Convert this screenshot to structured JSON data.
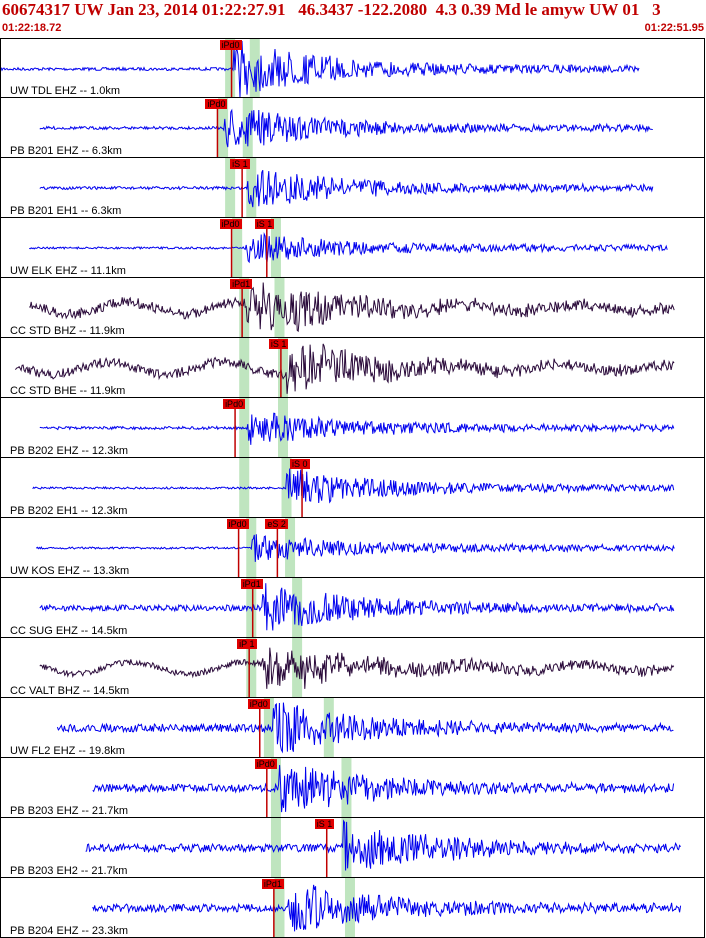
{
  "header": {
    "title": "60674317 UW Jan 23, 2014 01:22:27.91   46.3437 -122.2080  4.3 0.39 Md le amyw UW 01   3",
    "time_start": "01:22:18.72",
    "time_end": "01:22:51.95"
  },
  "colors": {
    "header": "#c00000",
    "trace_blue": "#0000ee",
    "trace_dark": "#2a0a3a",
    "pick": "#e00000",
    "band": "#bfe5bf"
  },
  "traces": [
    {
      "label": "UW TDL EHZ -- 1.0km",
      "color": "blue",
      "start": 0.0,
      "end": 0.905,
      "onset": 0.33,
      "amp": 28,
      "noise": 1.5,
      "picks": [
        {
          "text": "iPd0",
          "t": 0.31
        }
      ],
      "bands": [
        0.325,
        0.36
      ]
    },
    {
      "label": "PB B201 EHZ -- 6.3km",
      "color": "blue",
      "start": 0.055,
      "end": 0.925,
      "onset": 0.315,
      "amp": 22,
      "noise": 1.5,
      "picks": [
        {
          "text": "iPd0",
          "t": 0.29
        }
      ],
      "bands": [
        0.315,
        0.35
      ]
    },
    {
      "label": "PB B201 EH1 -- 6.3km",
      "color": "blue",
      "start": 0.055,
      "end": 0.925,
      "onset": 0.35,
      "amp": 20,
      "noise": 1.5,
      "picks": [
        {
          "text": "iS 1",
          "t": 0.325
        }
      ],
      "bands": [
        0.325,
        0.355
      ]
    },
    {
      "label": "UW ELK EHZ -- 11.1km",
      "color": "blue",
      "start": 0.04,
      "end": 0.945,
      "onset": 0.345,
      "amp": 14,
      "noise": 1.0,
      "picks": [
        {
          "text": "iPd0",
          "t": 0.31
        },
        {
          "text": "iS 1",
          "t": 0.36
        }
      ],
      "bands": [
        0.335,
        0.39
      ]
    },
    {
      "label": "CC STD BHZ -- 11.9km",
      "color": "dark",
      "start": 0.04,
      "end": 0.955,
      "onset": 0.345,
      "amp": 26,
      "noise": 5.0,
      "picks": [
        {
          "text": "iPd1",
          "t": 0.325
        }
      ],
      "bands": [
        0.345,
        0.395
      ]
    },
    {
      "label": "CC STD BHE -- 11.9km",
      "color": "dark",
      "start": 0.02,
      "end": 0.955,
      "onset": 0.405,
      "amp": 24,
      "noise": 5.0,
      "picks": [
        {
          "text": "iS 1",
          "t": 0.38
        }
      ],
      "bands": [
        0.345,
        0.4
      ]
    },
    {
      "label": "PB B202 EHZ -- 12.3km",
      "color": "blue",
      "start": 0.055,
      "end": 0.955,
      "onset": 0.35,
      "amp": 16,
      "noise": 1.5,
      "picks": [
        {
          "text": "iPd0",
          "t": 0.315
        }
      ],
      "bands": [
        0.345,
        0.4
      ]
    },
    {
      "label": "PB B202 EH1 -- 12.3km",
      "color": "blue",
      "start": 0.045,
      "end": 0.955,
      "onset": 0.405,
      "amp": 18,
      "noise": 1.0,
      "picks": [
        {
          "text": "iS 0",
          "t": 0.41
        }
      ],
      "bands": [
        0.345,
        0.405
      ]
    },
    {
      "label": "UW KOS EHZ -- 13.3km",
      "color": "blue",
      "start": 0.05,
      "end": 0.955,
      "onset": 0.355,
      "amp": 12,
      "noise": 1.0,
      "picks": [
        {
          "text": "iPd0",
          "t": 0.32
        },
        {
          "text": "eS 2",
          "t": 0.375
        }
      ],
      "bands": [
        0.355,
        0.41
      ]
    },
    {
      "label": "CC SUG EHZ -- 14.5km",
      "color": "blue",
      "start": 0.055,
      "end": 0.955,
      "onset": 0.37,
      "amp": 24,
      "noise": 3.0,
      "picks": [
        {
          "text": "iPd1",
          "t": 0.34
        }
      ],
      "bands": [
        0.355,
        0.42
      ]
    },
    {
      "label": "CC VALT BHZ -- 14.5km",
      "color": "dark",
      "start": 0.055,
      "end": 0.955,
      "onset": 0.37,
      "amp": 22,
      "noise": 3.0,
      "picks": [
        {
          "text": "iP 1",
          "t": 0.335
        }
      ],
      "bands": [
        0.355,
        0.42
      ]
    },
    {
      "label": "UW FL2 EHZ -- 19.8km",
      "color": "blue",
      "start": 0.08,
      "end": 0.955,
      "onset": 0.385,
      "amp": 26,
      "noise": 4.0,
      "picks": [
        {
          "text": "iPd0",
          "t": 0.35
        }
      ],
      "bands": [
        0.38,
        0.465
      ]
    },
    {
      "label": "PB B203 EHZ -- 21.7km",
      "color": "blue",
      "start": 0.13,
      "end": 0.955,
      "onset": 0.395,
      "amp": 26,
      "noise": 4.0,
      "picks": [
        {
          "text": "iPd0",
          "t": 0.36
        }
      ],
      "bands": [
        0.39,
        0.49
      ]
    },
    {
      "label": "PB B203 EH2 -- 21.7km",
      "color": "blue",
      "start": 0.12,
      "end": 0.965,
      "onset": 0.485,
      "amp": 26,
      "noise": 4.0,
      "picks": [
        {
          "text": "iS 1",
          "t": 0.445
        }
      ],
      "bands": [
        0.39,
        0.49
      ]
    },
    {
      "label": "PB B204 EHZ -- 23.3km",
      "color": "blue",
      "start": 0.13,
      "end": 0.965,
      "onset": 0.405,
      "amp": 26,
      "noise": 4.0,
      "picks": [
        {
          "text": "iPd1",
          "t": 0.37
        }
      ],
      "bands": [
        0.395,
        0.495
      ]
    }
  ]
}
